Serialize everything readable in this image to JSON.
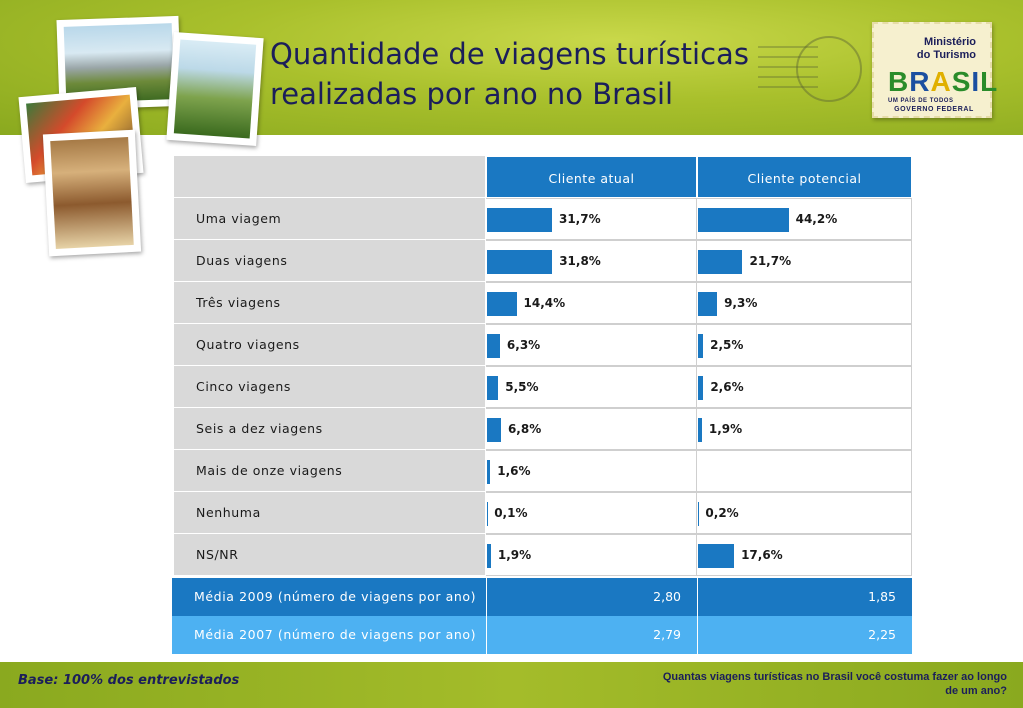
{
  "title": "Quantidade de viagens turísticas realizadas por ano no Brasil",
  "logo": {
    "ministry_line1": "Ministério",
    "ministry_line2": "do Turismo",
    "brand": "BRASIL",
    "tagline": "UM PAÍS DE TODOS",
    "government": "GOVERNO FEDERAL"
  },
  "chart_data": {
    "type": "table",
    "columns": [
      "Cliente atual",
      "Cliente potencial"
    ],
    "categories": [
      "Uma viagem",
      "Duas viagens",
      "Três viagens",
      "Quatro viagens",
      "Cinco viagens",
      "Seis a dez viagens",
      "Mais de onze viagens",
      "Nenhuma",
      "NS/NR"
    ],
    "series": [
      {
        "name": "Cliente atual",
        "values": [
          31.7,
          31.8,
          14.4,
          6.3,
          5.5,
          6.8,
          1.6,
          0.1,
          1.9
        ],
        "labels": [
          "31,7%",
          "31,8%",
          "14,4%",
          "6,3%",
          "5,5%",
          "6,8%",
          "1,6%",
          "0,1%",
          "1,9%"
        ]
      },
      {
        "name": "Cliente potencial",
        "values": [
          44.2,
          21.7,
          9.3,
          2.5,
          2.6,
          1.9,
          null,
          0.2,
          17.6
        ],
        "labels": [
          "44,2%",
          "21,7%",
          "9,3%",
          "2,5%",
          "2,6%",
          "1,9%",
          "",
          "0,2%",
          "17,6%"
        ]
      }
    ],
    "summary_rows": [
      {
        "label": "Média 2009 (número de viagens por ano)",
        "values": [
          "2,80",
          "1,85"
        ]
      },
      {
        "label": "Média 2007 (número de viagens por ano)",
        "values": [
          "2,79",
          "2,25"
        ]
      }
    ],
    "colors": {
      "bar": "#1a78c2",
      "avg2009": "#1a78c2",
      "avg2007": "#4db1f2"
    }
  },
  "footer": {
    "base": "Base: 100% dos entrevistados",
    "question": "Quantas viagens turísticas no Brasil você costuma fazer ao longo de um ano?"
  }
}
